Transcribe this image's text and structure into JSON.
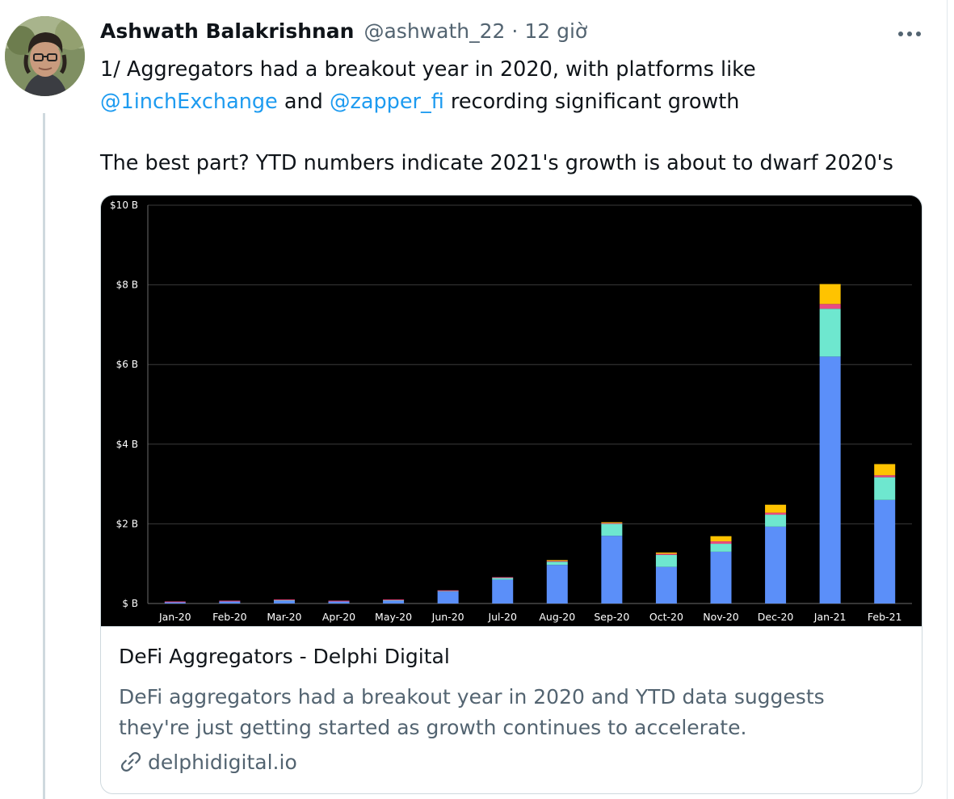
{
  "tweet": {
    "author_name": "Ashwath Balakrishnan",
    "handle": "@ashwath_22",
    "separator": "·",
    "time": "12 giờ",
    "text": {
      "line1": "1/ Aggregators had a breakout year in 2020, with platforms like",
      "mention1": "@1inchExchange",
      "and": " and ",
      "mention2": "@zapper_fi",
      "line2_rest": " recording significant growth",
      "line3": "The best part? YTD numbers indicate 2021's growth is about to dwarf 2020's"
    },
    "more_icon": "more-horizontal-icon"
  },
  "card": {
    "title": "DeFi Aggregators - Delphi Digital",
    "description_line1": "DeFi aggregators had a breakout year in 2020 and YTD data suggests",
    "description_line2": "they're just getting started as growth continues to accelerate.",
    "domain": "delphidigital.io",
    "link_icon": "link-icon"
  },
  "chart_data": {
    "type": "bar",
    "stacked": true,
    "background": "#000000",
    "categories": [
      "Jan-20",
      "Feb-20",
      "Mar-20",
      "Apr-20",
      "May-20",
      "Jun-20",
      "Jul-20",
      "Aug-20",
      "Sep-20",
      "Oct-20",
      "Nov-20",
      "Dec-20",
      "Jan-21",
      "Feb-21"
    ],
    "series": [
      {
        "color": "#5b8ff9",
        "values": [
          0.03,
          0.05,
          0.07,
          0.05,
          0.07,
          0.3,
          0.6,
          0.97,
          1.7,
          0.92,
          1.3,
          1.93,
          6.2,
          2.6
        ]
      },
      {
        "color": "#6ee7cf",
        "values": [
          0,
          0,
          0.01,
          0,
          0.01,
          0.01,
          0.04,
          0.08,
          0.3,
          0.3,
          0.2,
          0.3,
          1.2,
          0.57
        ]
      },
      {
        "color": "#e94b82",
        "values": [
          0.005,
          0.005,
          0.005,
          0.005,
          0.005,
          0.005,
          0.01,
          0.02,
          0.02,
          0.03,
          0.06,
          0.05,
          0.12,
          0.05
        ]
      },
      {
        "color": "#ffc300",
        "values": [
          0,
          0,
          0,
          0,
          0,
          0,
          0,
          0.01,
          0.01,
          0.03,
          0.13,
          0.2,
          0.5,
          0.28
        ]
      }
    ],
    "y_ticks": [
      "$ B",
      "$2 B",
      "$4 B",
      "$6 B",
      "$8 B",
      "$10 B"
    ],
    "ylim": [
      0,
      10
    ],
    "grid": true
  }
}
